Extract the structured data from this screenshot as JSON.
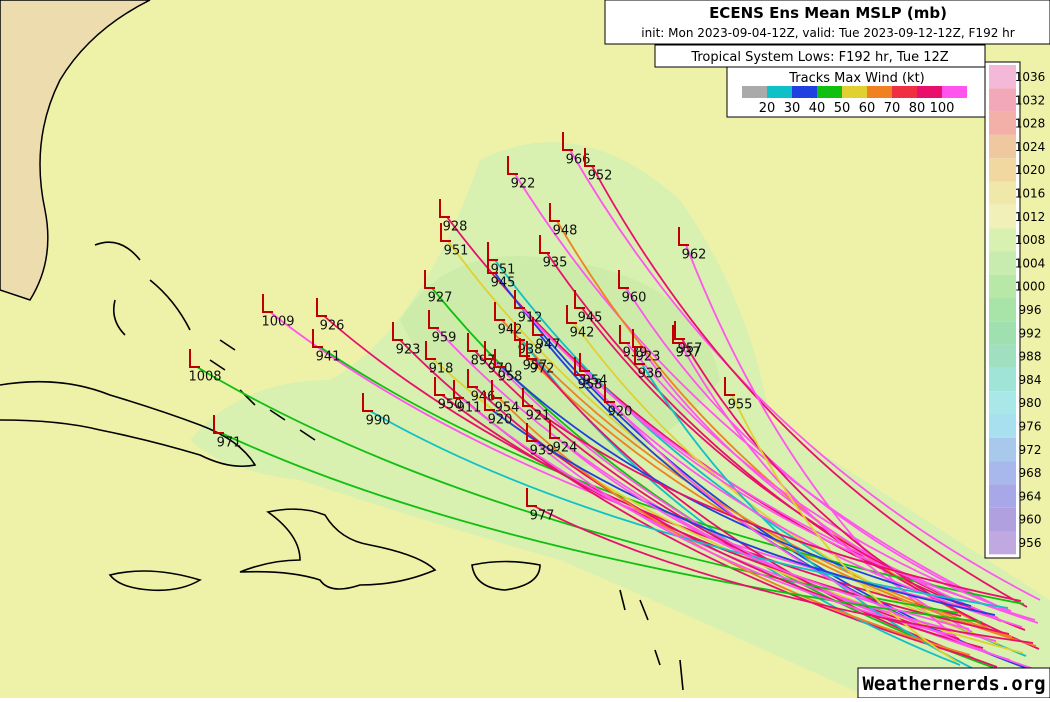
{
  "header": {
    "title": "ECENS Ens Mean MSLP (mb)",
    "subtitle": "init: Mon 2023-09-04-12Z, valid: Tue 2023-09-12-12Z, F192 hr",
    "panel": "Tropical System Lows: F192 hr, Tue 12Z"
  },
  "wind_legend": {
    "title": "Tracks Max Wind (kt)",
    "labels": [
      20,
      30,
      40,
      50,
      60,
      70,
      80,
      100
    ],
    "colors": [
      "#aaaaaa",
      "#10c0c8",
      "#2040e0",
      "#10c010",
      "#e0d030",
      "#f08020",
      "#f03040",
      "#e8106a",
      "#ff55ee"
    ]
  },
  "pressure_scale": {
    "labels": [
      1036,
      1032,
      1028,
      1024,
      1020,
      1016,
      1012,
      1008,
      1004,
      1000,
      996,
      992,
      988,
      984,
      980,
      976,
      972,
      968,
      964,
      960,
      956
    ],
    "colors": [
      "#f4b8d8",
      "#f2a8b8",
      "#f2b0a8",
      "#f0c8a0",
      "#f0d8a0",
      "#f0e8a8",
      "#f0f0b8",
      "#d8f0b0",
      "#c8ecb0",
      "#b8e8a8",
      "#a8e4a8",
      "#a0e0b0",
      "#a0e0c0",
      "#a0e4d8",
      "#a8e8e8",
      "#a8e0f0",
      "#a8c8ec",
      "#a8b8ec",
      "#a8a8e8",
      "#b0a0e0",
      "#c0a8e0"
    ]
  },
  "lows": [
    966,
    952,
    922,
    928,
    948,
    951,
    962,
    935,
    951,
    945,
    927,
    960,
    1009,
    926,
    912,
    945,
    942,
    942,
    959,
    923,
    938,
    947,
    941,
    939,
    923,
    957,
    937,
    897,
    957,
    918,
    970,
    972,
    936,
    958,
    1008,
    954,
    958,
    950,
    911,
    946,
    954,
    955,
    920,
    921,
    990,
    920,
    971,
    924,
    939,
    977
  ],
  "watermark": "Weathernerds.org"
}
